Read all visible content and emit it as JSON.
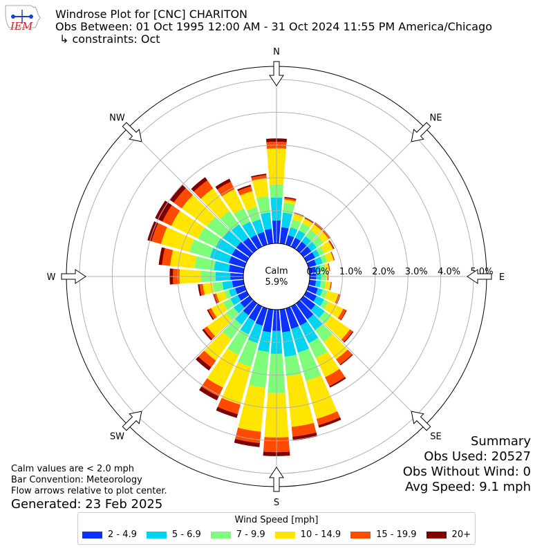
{
  "header": {
    "logo_text": "IEM",
    "title_line1": "Windrose Plot for [CNC] CHARITON",
    "title_line2": "Obs Between: 01 Oct 1995 12:00 AM - 31 Oct 2024 11:55 PM America/Chicago",
    "title_line3": "↳ constraints: Oct"
  },
  "notes": {
    "calm_def": "Calm values are < 2.0 mph",
    "bar_convention": "Bar Convention: Meteorology",
    "flow_arrows": "Flow arrows relative to plot center.",
    "generated": "Generated: 23 Feb 2025"
  },
  "summary": {
    "title": "Summary",
    "obs_used": "Obs Used: 20527",
    "obs_without_wind": "Obs Without Wind: 0",
    "avg_speed": "Avg Speed: 9.1 mph"
  },
  "chart_data": {
    "type": "windrose",
    "direction_labels": [
      "N",
      "NE",
      "E",
      "SE",
      "S",
      "SW",
      "W",
      "NW"
    ],
    "calm_label": "Calm",
    "calm_value": "5.9%",
    "radial_ticks": [
      "0.0%",
      "1.0%",
      "2.0%",
      "3.0%",
      "4.0%",
      "5.0%"
    ],
    "r_max": 5.4,
    "legend_title": "Wind Speed [mph]",
    "bins": [
      {
        "label": "2 - 4.9",
        "color": "#0a30ff"
      },
      {
        "label": "5 - 6.9",
        "color": "#00d4f0"
      },
      {
        "label": "7 - 9.9",
        "color": "#7efd7b"
      },
      {
        "label": "10 - 14.9",
        "color": "#ffe500"
      },
      {
        "label": "15 - 19.9",
        "color": "#ff4a00"
      },
      {
        "label": "20+",
        "color": "#800000"
      }
    ],
    "directions_deg": [
      0,
      10,
      20,
      30,
      40,
      50,
      60,
      70,
      80,
      90,
      100,
      110,
      120,
      130,
      140,
      150,
      160,
      170,
      180,
      190,
      200,
      210,
      220,
      230,
      240,
      250,
      260,
      270,
      280,
      290,
      300,
      310,
      320,
      330,
      340,
      350
    ],
    "cumulative": [
      [
        0.7,
        1.4,
        1.8,
        2.9,
        3.1,
        3.2
      ],
      [
        0.5,
        0.95,
        1.25,
        1.35,
        1.4,
        1.43
      ],
      [
        0.3,
        0.55,
        0.8,
        0.98,
        1.0,
        1.02
      ],
      [
        0.3,
        0.55,
        0.8,
        0.95,
        0.97,
        0.99
      ],
      [
        0.3,
        0.5,
        0.75,
        0.95,
        1.0,
        1.02
      ],
      [
        0.3,
        0.5,
        0.75,
        0.95,
        1.0,
        1.02
      ],
      [
        0.3,
        0.45,
        0.62,
        0.9,
        0.93,
        0.95
      ],
      [
        0.25,
        0.45,
        0.6,
        0.8,
        0.82,
        0.83
      ],
      [
        0.2,
        0.35,
        0.5,
        0.6,
        0.62,
        0.63
      ],
      [
        0.2,
        0.35,
        0.5,
        0.55,
        0.56,
        0.57
      ],
      [
        0.2,
        0.35,
        0.5,
        0.65,
        0.67,
        0.68
      ],
      [
        0.3,
        0.45,
        0.6,
        0.95,
        1.0,
        1.02
      ],
      [
        0.35,
        0.6,
        0.75,
        1.25,
        1.35,
        1.37
      ],
      [
        0.45,
        0.8,
        1.05,
        1.75,
        1.85,
        1.88
      ],
      [
        0.6,
        1.0,
        1.45,
        2.1,
        2.3,
        2.33
      ],
      [
        0.65,
        1.25,
        1.75,
        2.4,
        2.7,
        2.75
      ],
      [
        0.65,
        1.4,
        2.3,
        3.5,
        3.7,
        3.78
      ],
      [
        0.7,
        1.45,
        2.05,
        3.6,
        3.9,
        4.02
      ],
      [
        0.65,
        1.35,
        2.55,
        3.9,
        4.35,
        4.47
      ],
      [
        0.7,
        1.3,
        2.4,
        3.75,
        4.1,
        4.22
      ],
      [
        0.55,
        1.1,
        1.85,
        3.05,
        3.35,
        3.47
      ],
      [
        0.5,
        0.95,
        1.65,
        2.75,
        3.05,
        3.18
      ],
      [
        0.45,
        0.8,
        1.35,
        2.15,
        2.4,
        2.52
      ],
      [
        0.35,
        0.6,
        0.9,
        1.6,
        1.72,
        1.78
      ],
      [
        0.3,
        0.55,
        0.8,
        1.2,
        1.3,
        1.34
      ],
      [
        0.3,
        0.5,
        0.65,
        0.9,
        0.97,
        1.0
      ],
      [
        0.35,
        0.65,
        0.95,
        1.25,
        1.35,
        1.4
      ],
      [
        0.4,
        0.85,
        1.3,
        1.95,
        2.15,
        2.25
      ],
      [
        0.45,
        0.9,
        1.5,
        2.25,
        2.5,
        2.6
      ],
      [
        0.5,
        1.1,
        1.75,
        2.65,
        2.95,
        3.08
      ],
      [
        0.5,
        1.05,
        1.65,
        2.55,
        2.85,
        3.1
      ],
      [
        0.5,
        1.0,
        1.6,
        2.55,
        2.85,
        3.0
      ],
      [
        0.45,
        0.95,
        1.45,
        2.3,
        2.6,
        2.72
      ],
      [
        0.4,
        0.85,
        1.3,
        1.95,
        2.2,
        2.3
      ],
      [
        0.4,
        0.8,
        1.2,
        1.7,
        1.85,
        1.9
      ],
      [
        0.45,
        0.95,
        1.45,
        2.0,
        2.1,
        2.14
      ]
    ]
  }
}
